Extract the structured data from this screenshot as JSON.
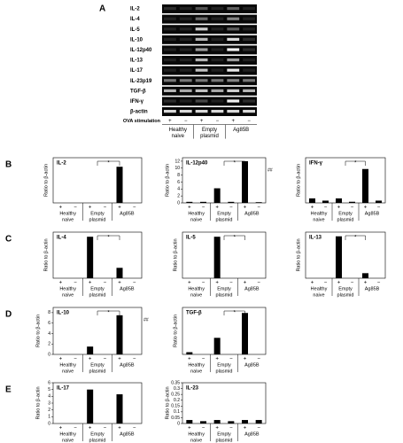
{
  "gel": {
    "panel": "A",
    "rows": [
      "IL-2",
      "IL-4",
      "IL-5",
      "IL-10",
      "IL-12p40",
      "IL-13",
      "IL-17",
      "IL-23p19",
      "TGF-β",
      "IFN-γ",
      "β-actin"
    ],
    "stimulation_label": "OVA stimulation",
    "lanes": [
      "+",
      "−",
      "+",
      "−",
      "+",
      "−"
    ],
    "groups": [
      [
        "Healthy",
        "naive"
      ],
      [
        "Empty",
        "plasmid"
      ],
      [
        "Ag85B"
      ]
    ]
  },
  "chart_data": [
    {
      "type": "bar",
      "panel": "B",
      "title": "IL-2",
      "ylabel": "Ratio to β-actin",
      "categories": [
        "+",
        "−",
        "+",
        "−",
        "+",
        "−"
      ],
      "groups": [
        [
          "Healthy",
          "naive"
        ],
        [
          "Empty",
          "plasmid"
        ],
        [
          "Ag85B"
        ]
      ],
      "values": [
        0,
        0,
        0,
        0,
        0.8,
        0
      ],
      "color": "#000000",
      "ylim": [
        0,
        1
      ],
      "yticks": [],
      "annotation": "*"
    },
    {
      "type": "bar",
      "title": "IL-12p40",
      "ylabel": "Ratio to β-actin",
      "categories": [
        "+",
        "−",
        "+",
        "−",
        "+",
        "−"
      ],
      "groups": [
        [
          "Healthy",
          "naive"
        ],
        [
          "Empty",
          "plasmid"
        ],
        [
          "Ag85B"
        ]
      ],
      "values": [
        0.3,
        0.3,
        4.2,
        0.3,
        12,
        0.2
      ],
      "color": "#000000",
      "ylim": [
        0,
        13
      ],
      "yticks": [
        0,
        2,
        4,
        6,
        8,
        10,
        12
      ],
      "annotation": "*",
      "note": "##"
    },
    {
      "type": "bar",
      "title": "IFN-γ",
      "ylabel": "Ratio to β-actin",
      "categories": [
        "+",
        "−",
        "+",
        "−",
        "+",
        "−"
      ],
      "groups": [
        [
          "Healthy",
          "naive"
        ],
        [
          "Empty",
          "plasmid"
        ],
        [
          "Ag85B"
        ]
      ],
      "values": [
        0.2,
        0.1,
        0.2,
        0.05,
        1.5,
        0.1
      ],
      "color": "#000000",
      "ylim": [
        0,
        2
      ],
      "yticks": [],
      "annotation": "*"
    },
    {
      "type": "bar",
      "panel": "C",
      "title": "IL-4",
      "ylabel": "Ratio to β-actin",
      "categories": [
        "+",
        "−",
        "+",
        "−",
        "+",
        "−"
      ],
      "groups": [
        [
          "Healthy",
          "naive"
        ],
        [
          "Empty",
          "plasmid"
        ],
        [
          "Ag85B"
        ]
      ],
      "values": [
        0,
        0,
        1.8,
        0,
        0.45,
        0
      ],
      "color": "#000000",
      "ylim": [
        0,
        2
      ],
      "yticks": [],
      "annotation": "*"
    },
    {
      "type": "bar",
      "title": "IL-5",
      "ylabel": "Ratio to β-actin",
      "categories": [
        "+",
        "−",
        "+",
        "−",
        "+",
        "−"
      ],
      "groups": [
        [
          "Healthy",
          "naive"
        ],
        [
          "Empty",
          "plasmid"
        ],
        [
          "Ag85B"
        ]
      ],
      "values": [
        0,
        0,
        0.72,
        0,
        0,
        0
      ],
      "color": "#000000",
      "ylim": [
        0,
        0.8
      ],
      "yticks": [],
      "annotation": "*"
    },
    {
      "type": "bar",
      "title": "IL-13",
      "ylabel": "Ratio to β-actin",
      "categories": [
        "+",
        "−",
        "+",
        "−",
        "+",
        "−"
      ],
      "groups": [
        [
          "Healthy",
          "naive"
        ],
        [
          "Empty",
          "plasmid"
        ],
        [
          "Ag85B"
        ]
      ],
      "values": [
        0,
        0,
        1.0,
        0,
        0.12,
        0
      ],
      "color": "#000000",
      "ylim": [
        0,
        1.1
      ],
      "yticks": [],
      "annotation": "*"
    },
    {
      "type": "bar",
      "panel": "D",
      "title": "IL-10",
      "ylabel": "Ratio to β-actin",
      "categories": [
        "+",
        "−",
        "+",
        "−",
        "+",
        "−"
      ],
      "groups": [
        [
          "Healthy",
          "naive"
        ],
        [
          "Empty",
          "plasmid"
        ],
        [
          "Ag85B"
        ]
      ],
      "values": [
        0,
        0,
        1.5,
        0,
        7.5,
        0
      ],
      "color": "#000000",
      "ylim": [
        0,
        9
      ],
      "yticks": [
        0,
        2,
        4,
        6,
        8
      ],
      "annotation": "*",
      "note": "##"
    },
    {
      "type": "bar",
      "title": "TGF-β",
      "ylabel": "Ratio to β-actin",
      "categories": [
        "+",
        "−",
        "+",
        "−",
        "+",
        "−"
      ],
      "groups": [
        [
          "Healthy",
          "naive"
        ],
        [
          "Empty",
          "plasmid"
        ],
        [
          "Ag85B"
        ]
      ],
      "values": [
        0.08,
        0,
        0.6,
        0,
        1.5,
        0
      ],
      "color": "#000000",
      "ylim": [
        0,
        1.7
      ],
      "yticks": [],
      "annotation": "*"
    },
    {
      "type": "bar",
      "panel": "E",
      "title": "IL-17",
      "ylabel": "Ratio to β-actin",
      "categories": [
        "+",
        "−",
        "+",
        "−",
        "+",
        "−"
      ],
      "groups": [
        [
          "Healthy",
          "naive"
        ],
        [
          "Empty",
          "plasmid"
        ],
        [
          "Ag85B"
        ]
      ],
      "values": [
        0,
        0,
        5,
        0,
        4.3,
        0
      ],
      "color": "#000000",
      "ylim": [
        0,
        6
      ],
      "yticks": [
        0,
        1,
        2,
        3,
        4,
        5,
        6
      ]
    },
    {
      "type": "bar",
      "title": "IL-23",
      "ylabel": "Ratio to β-actin",
      "categories": [
        "+",
        "−",
        "+",
        "−",
        "+",
        "−"
      ],
      "groups": [
        [
          "Healthy",
          "naive"
        ],
        [
          "Empty",
          "plasmid"
        ],
        [
          "Ag85B"
        ]
      ],
      "values": [
        0.03,
        0.02,
        0.03,
        0.02,
        0.03,
        0.03
      ],
      "color": "#000000",
      "ylim": [
        0,
        0.35
      ],
      "yticks": [
        0,
        0.05,
        0.1,
        0.15,
        0.2,
        0.25,
        0.3,
        0.35
      ]
    }
  ]
}
